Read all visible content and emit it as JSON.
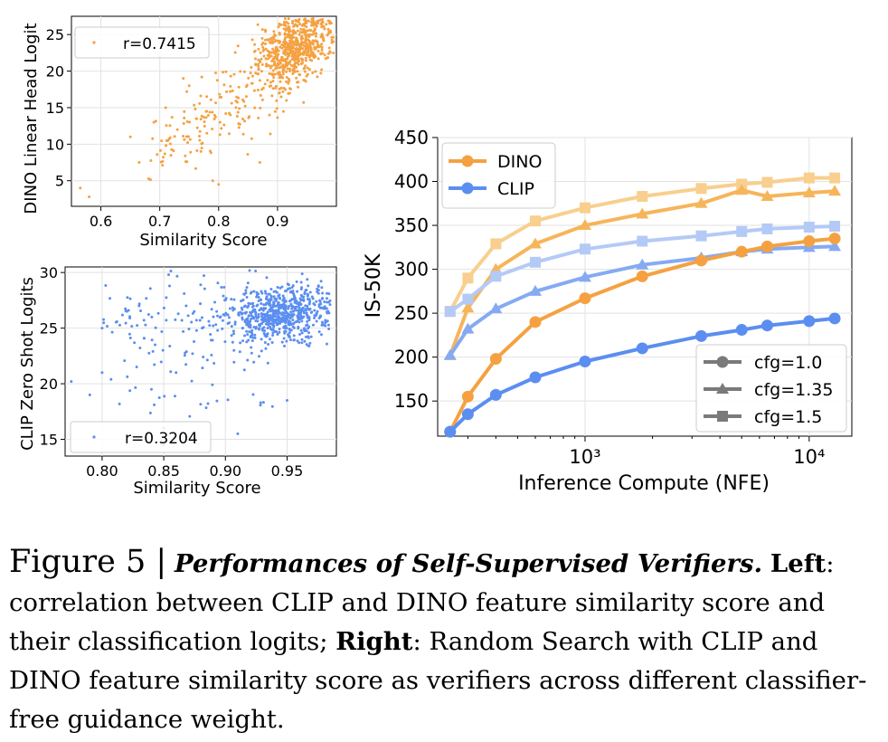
{
  "caption": {
    "figure_label": "Figure 5 |",
    "title": "Performances of Self-Supervised Verifiers.",
    "left_label": "Left",
    "left_text": ": correlation between CLIP and DINO feature similarity score and their classification logits; ",
    "right_label": "Right",
    "right_text": ": Random Search with CLIP and DINO feature similarity score as verifiers across different classifier-free guidance weight."
  },
  "colors": {
    "dino": "#f5a142",
    "clip": "#5b8ef0",
    "dino_levels": [
      "#f5a142",
      "#f6b55a",
      "#f8cf8e"
    ],
    "clip_levels": [
      "#5b8ef0",
      "#86aaf2",
      "#b4caf6"
    ]
  },
  "chart_data": [
    {
      "type": "scatter",
      "title": "",
      "xlabel": "Similarity Score",
      "ylabel": "DINO Linear Head Logit",
      "xlim": [
        0.55,
        1.0
      ],
      "ylim": [
        1.5,
        27.5
      ],
      "x_ticks": [
        0.6,
        0.7,
        0.8,
        0.9
      ],
      "x_tick_labels": [
        "0.6",
        "0.7",
        "0.8",
        "0.9"
      ],
      "y_ticks": [
        5,
        10,
        15,
        20,
        25
      ],
      "y_tick_labels": [
        "5",
        "10",
        "15",
        "20",
        "25"
      ],
      "legend": "r=0.7415",
      "legend_position": "top-left",
      "grid": true,
      "color": "#f5a142",
      "cluster": {
        "x_center": 0.93,
        "y_center": 23,
        "x_spread": 0.03,
        "y_spread": 2.2,
        "count": 600
      },
      "points": [
        {
          "x": 0.565,
          "y": 4
        },
        {
          "x": 0.58,
          "y": 2.8
        },
        {
          "x": 0.65,
          "y": 11
        },
        {
          "x": 0.665,
          "y": 7.5
        },
        {
          "x": 0.7,
          "y": 22
        },
        {
          "x": 0.8,
          "y": 4.5
        },
        {
          "x": 0.73,
          "y": 12
        },
        {
          "x": 0.77,
          "y": 9
        },
        {
          "x": 0.71,
          "y": 15
        },
        {
          "x": 0.75,
          "y": 18
        },
        {
          "x": 0.79,
          "y": 5
        },
        {
          "x": 0.87,
          "y": 7.5
        },
        {
          "x": 0.69,
          "y": 13
        },
        {
          "x": 0.78,
          "y": 11.5
        },
        {
          "x": 0.82,
          "y": 14
        },
        {
          "x": 0.74,
          "y": 19
        }
      ]
    },
    {
      "type": "scatter",
      "title": "",
      "xlabel": "Similarity Score",
      "ylabel": "CLIP Zero Shot Logits",
      "xlim": [
        0.77,
        0.99
      ],
      "ylim": [
        13.5,
        30.5
      ],
      "x_ticks": [
        0.8,
        0.85,
        0.9,
        0.95
      ],
      "x_tick_labels": [
        "0.80",
        "0.85",
        "0.90",
        "0.95"
      ],
      "y_ticks": [
        15,
        20,
        25,
        30
      ],
      "y_tick_labels": [
        "15",
        "20",
        "25",
        "30"
      ],
      "legend": "r=0.3204",
      "legend_position": "bottom-left",
      "grid": true,
      "color": "#5b8ef0",
      "cluster": {
        "x_center": 0.945,
        "y_center": 26.3,
        "x_spread": 0.02,
        "y_spread": 1.2,
        "count": 650
      },
      "points": [
        {
          "x": 0.775,
          "y": 20.2
        },
        {
          "x": 0.79,
          "y": 19
        },
        {
          "x": 0.8,
          "y": 21
        },
        {
          "x": 0.84,
          "y": 19.5
        },
        {
          "x": 0.85,
          "y": 16
        },
        {
          "x": 0.85,
          "y": 14.5
        },
        {
          "x": 0.91,
          "y": 15.5
        },
        {
          "x": 0.95,
          "y": 18.5
        },
        {
          "x": 0.8,
          "y": 25
        },
        {
          "x": 0.82,
          "y": 26.5
        },
        {
          "x": 0.83,
          "y": 27
        },
        {
          "x": 0.86,
          "y": 21
        }
      ]
    },
    {
      "type": "line",
      "title": "",
      "xlabel": "Inference Compute (NFE)",
      "ylabel": "IS-50K",
      "x_scale": "log",
      "xlim": [
        220,
        15500
      ],
      "ylim": [
        110,
        450
      ],
      "x_ticks": [
        1000,
        10000
      ],
      "x_tick_labels": [
        "10³",
        "10⁴"
      ],
      "y_ticks": [
        150,
        200,
        250,
        300,
        350,
        400,
        450
      ],
      "y_tick_labels": [
        "150",
        "200",
        "250",
        "300",
        "350",
        "400",
        "450"
      ],
      "grid": true,
      "legend_methods": [
        {
          "label": "DINO",
          "color": "#f5a142"
        },
        {
          "label": "CLIP",
          "color": "#5b8ef0"
        }
      ],
      "legend_cfg": [
        {
          "label": "cfg=1.0",
          "marker": "circle"
        },
        {
          "label": "cfg=1.35",
          "marker": "triangle"
        },
        {
          "label": "cfg=1.5",
          "marker": "square"
        }
      ],
      "x": [
        250,
        300,
        400,
        600,
        1000,
        1800,
        3300,
        5000,
        6500,
        10000,
        13000
      ],
      "series": [
        {
          "name": "DINO cfg=1.0",
          "method": "DINO",
          "marker": "circle",
          "level": 0,
          "values": [
            115,
            155,
            198,
            240,
            267,
            292,
            310,
            320,
            326,
            332,
            335
          ]
        },
        {
          "name": "DINO cfg=1.35",
          "method": "DINO",
          "marker": "triangle",
          "level": 1,
          "values": [
            202,
            256,
            300,
            329,
            350,
            363,
            375,
            390,
            383,
            387,
            389
          ]
        },
        {
          "name": "DINO cfg=1.5",
          "method": "DINO",
          "marker": "square",
          "level": 2,
          "values": [
            252,
            290,
            329,
            355,
            370,
            383,
            392,
            397,
            399,
            404,
            404
          ]
        },
        {
          "name": "CLIP cfg=1.0",
          "method": "CLIP",
          "marker": "circle",
          "level": 0,
          "values": [
            115,
            135,
            157,
            177,
            195,
            210,
            224,
            231,
            236,
            241,
            244
          ]
        },
        {
          "name": "CLIP cfg=1.35",
          "method": "CLIP",
          "marker": "triangle",
          "level": 1,
          "values": [
            202,
            232,
            255,
            275,
            291,
            305,
            313,
            320,
            323,
            325,
            326
          ]
        },
        {
          "name": "CLIP cfg=1.5",
          "method": "CLIP",
          "marker": "square",
          "level": 2,
          "values": [
            252,
            266,
            292,
            308,
            323,
            332,
            338,
            343,
            346,
            348,
            349
          ]
        }
      ]
    }
  ]
}
